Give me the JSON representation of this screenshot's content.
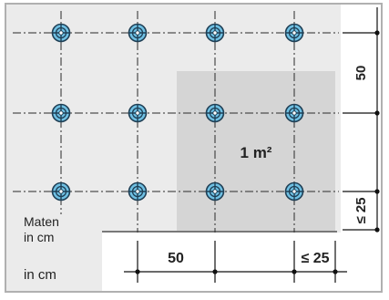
{
  "colors": {
    "background": "#ebebeb",
    "frame": "#b0b0b0",
    "area_fill": "#d5d5d5",
    "grid_line": "#2a2a2a",
    "anchor_fill": "#6fc0e3",
    "anchor_stroke": "#1f3f55",
    "dim_line": "#111111"
  },
  "labels": {
    "area": "1 m²",
    "dim_vertical_spacing": "50",
    "dim_vertical_edge": "≤ 25",
    "dim_horizontal_spacing": "50",
    "dim_horizontal_edge": "≤ 25",
    "units_line1": "Maten",
    "units_line2": "in cm",
    "units_footer": "in cm"
  },
  "grid": {
    "columns": 4,
    "rows": 3
  },
  "icons": {
    "anchor": "anchor-point-icon"
  }
}
